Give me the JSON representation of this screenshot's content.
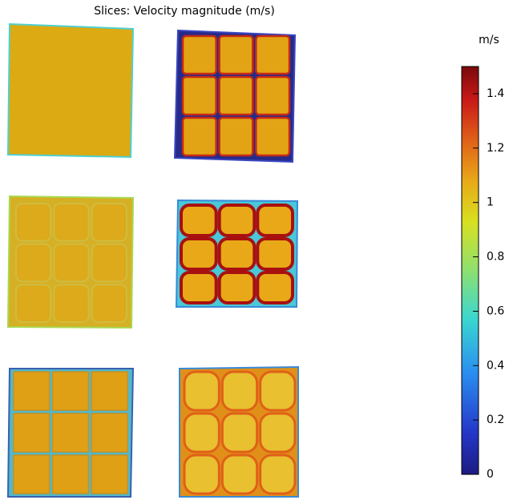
{
  "title": "Slices: Velocity magnitude (m/s)",
  "colorbar": {
    "unit": "m/s",
    "lim": [
      0,
      1.5
    ],
    "ticks": [
      0,
      0.2,
      0.4,
      0.6,
      0.8,
      1,
      1.2,
      1.4
    ]
  }
}
